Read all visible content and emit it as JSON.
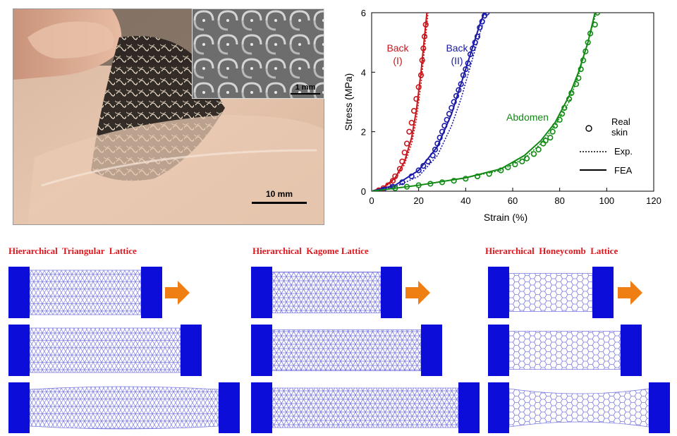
{
  "photo": {
    "scale_bar_label": "10 mm",
    "inset_scale_bar_label": "1 mm"
  },
  "chart_data": {
    "type": "line",
    "xlabel": "Strain (%)",
    "ylabel": "Stress (MPa)",
    "xlim": [
      0,
      120
    ],
    "ylim": [
      0,
      6
    ],
    "xticks": [
      0,
      20,
      40,
      60,
      80,
      100,
      120
    ],
    "yticks": [
      0,
      2,
      4,
      6
    ],
    "grid": false,
    "legend_placement": "bottom-right",
    "legend": {
      "real": "Real\nskin",
      "exp": "Exp.",
      "fea": "FEA"
    },
    "series": [
      {
        "name": "Back\n(I)",
        "color": "#c8161d",
        "fea": [
          [
            0,
            0
          ],
          [
            5,
            0.12
          ],
          [
            10,
            0.45
          ],
          [
            14,
            1.0
          ],
          [
            17,
            1.8
          ],
          [
            19,
            2.7
          ],
          [
            21,
            4.0
          ],
          [
            22.5,
            5.2
          ],
          [
            23.5,
            6.0
          ]
        ],
        "exp": [
          [
            0,
            0
          ],
          [
            5,
            0.1
          ],
          [
            10,
            0.4
          ],
          [
            14,
            0.9
          ],
          [
            17,
            1.6
          ],
          [
            19,
            2.4
          ],
          [
            21,
            3.6
          ],
          [
            22.5,
            4.8
          ],
          [
            24,
            6.0
          ]
        ],
        "real": [
          [
            3,
            0.03
          ],
          [
            5,
            0.1
          ],
          [
            7,
            0.2
          ],
          [
            9,
            0.35
          ],
          [
            10,
            0.5
          ],
          [
            12,
            0.75
          ],
          [
            13,
            1.0
          ],
          [
            14,
            1.3
          ],
          [
            15,
            1.6
          ],
          [
            16,
            2.0
          ],
          [
            17,
            2.3
          ],
          [
            18,
            2.7
          ],
          [
            19,
            3.1
          ],
          [
            20,
            3.5
          ],
          [
            21,
            3.9
          ],
          [
            21.5,
            4.4
          ],
          [
            22,
            4.8
          ],
          [
            22.5,
            5.2
          ],
          [
            23,
            5.6
          ]
        ]
      },
      {
        "name": "Back\n(II)",
        "color": "#1a1aa6",
        "fea": [
          [
            0,
            0
          ],
          [
            10,
            0.2
          ],
          [
            20,
            0.7
          ],
          [
            28,
            1.5
          ],
          [
            34,
            2.6
          ],
          [
            38,
            3.6
          ],
          [
            42,
            4.6
          ],
          [
            46,
            5.6
          ],
          [
            48,
            6.0
          ]
        ],
        "exp": [
          [
            0,
            0
          ],
          [
            10,
            0.15
          ],
          [
            20,
            0.5
          ],
          [
            28,
            1.2
          ],
          [
            34,
            2.2
          ],
          [
            38,
            3.1
          ],
          [
            42,
            4.2
          ],
          [
            46,
            5.3
          ],
          [
            49,
            6.0
          ]
        ],
        "real": [
          [
            5,
            0.05
          ],
          [
            9,
            0.15
          ],
          [
            13,
            0.3
          ],
          [
            17,
            0.5
          ],
          [
            20,
            0.7
          ],
          [
            22,
            0.85
          ],
          [
            24,
            1.0
          ],
          [
            26,
            1.2
          ],
          [
            27,
            1.4
          ],
          [
            28,
            1.6
          ],
          [
            29,
            1.8
          ],
          [
            30,
            2.0
          ],
          [
            31,
            2.2
          ],
          [
            32,
            2.4
          ],
          [
            33,
            2.6
          ],
          [
            34,
            2.8
          ],
          [
            35,
            3.0
          ],
          [
            36,
            3.2
          ],
          [
            37,
            3.4
          ],
          [
            38,
            3.6
          ],
          [
            39,
            3.9
          ],
          [
            40,
            4.1
          ],
          [
            41,
            4.3
          ],
          [
            42,
            4.6
          ],
          [
            43,
            4.8
          ],
          [
            44,
            5.0
          ],
          [
            45,
            5.2
          ],
          [
            46,
            5.5
          ],
          [
            47,
            5.7
          ],
          [
            48,
            5.9
          ],
          [
            49,
            6.0
          ]
        ]
      },
      {
        "name": "Abdomen",
        "color": "#118a14",
        "fea": [
          [
            0,
            0
          ],
          [
            20,
            0.2
          ],
          [
            40,
            0.45
          ],
          [
            55,
            0.75
          ],
          [
            65,
            1.2
          ],
          [
            72,
            1.7
          ],
          [
            78,
            2.3
          ],
          [
            84,
            3.2
          ],
          [
            88,
            4.0
          ],
          [
            92,
            5.0
          ],
          [
            95,
            6.0
          ]
        ],
        "exp": [
          [
            0,
            0
          ],
          [
            20,
            0.2
          ],
          [
            40,
            0.45
          ],
          [
            55,
            0.7
          ],
          [
            65,
            1.1
          ],
          [
            72,
            1.6
          ],
          [
            78,
            2.2
          ],
          [
            84,
            3.0
          ],
          [
            88,
            3.9
          ],
          [
            92,
            5.0
          ],
          [
            95.5,
            6.0
          ]
        ],
        "real": [
          [
            10,
            0.1
          ],
          [
            15,
            0.15
          ],
          [
            20,
            0.2
          ],
          [
            25,
            0.25
          ],
          [
            30,
            0.3
          ],
          [
            35,
            0.35
          ],
          [
            40,
            0.42
          ],
          [
            45,
            0.5
          ],
          [
            50,
            0.58
          ],
          [
            55,
            0.7
          ],
          [
            58,
            0.8
          ],
          [
            61,
            0.9
          ],
          [
            64,
            1.0
          ],
          [
            66,
            1.1
          ],
          [
            69,
            1.25
          ],
          [
            71,
            1.4
          ],
          [
            73,
            1.6
          ],
          [
            74,
            1.7
          ],
          [
            76,
            1.8
          ],
          [
            77,
            2.0
          ],
          [
            78,
            2.2
          ],
          [
            80,
            2.4
          ],
          [
            81,
            2.6
          ],
          [
            82,
            2.8
          ],
          [
            84,
            3.1
          ],
          [
            85,
            3.3
          ],
          [
            87,
            3.6
          ],
          [
            88,
            3.8
          ],
          [
            89,
            4.1
          ],
          [
            90,
            4.4
          ],
          [
            91,
            4.7
          ],
          [
            92,
            5.0
          ],
          [
            93,
            5.3
          ],
          [
            95,
            5.6
          ],
          [
            96,
            6.0
          ]
        ]
      }
    ]
  },
  "lattices": {
    "titles": [
      "Hierarchical  Triangular  Lattice",
      "Hierarchical  Kagome Lattice",
      "Hierarchical  Honeycomb  Lattice"
    ],
    "colors": {
      "grip": "#0d0dd9",
      "mesh": "#7a7ae0",
      "arrow": "#f07f13"
    }
  }
}
